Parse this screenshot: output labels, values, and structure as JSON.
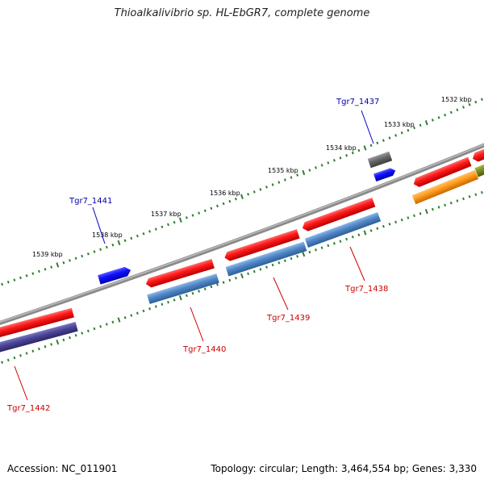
{
  "title": "Thioalkalivibrio sp. HL-EbGR7, complete genome",
  "footer": {
    "accession": "Accession: NC_011901",
    "summary": "Topology: circular; Length: 3,464,554 bp; Genes: 3,330"
  },
  "colors": {
    "backbone": "#8c8c8c",
    "tick": "#2e7d2e",
    "cds": "#ff1a1a",
    "cds_rna_bar": "#4f86c6",
    "blue_gene": "#1010ff",
    "gray_gene": "#666666",
    "orange_gene": "#ff9a1a",
    "olive_gene": "#7a8c1f",
    "purple_gene": "#4a4496",
    "label_red": "#cc0000",
    "label_blue": "#0000aa"
  },
  "tick_labels": [
    "1532 kbp",
    "1533 kbp",
    "1534 kbp",
    "1535 kbp",
    "1536 kbp",
    "1537 kbp",
    "1538 kbp",
    "1539 kbp"
  ],
  "gene_labels": {
    "g1437": "Tgr7_1437",
    "g1441": "Tgr7_1441",
    "g1438": "Tgr7_1438",
    "g1439": "Tgr7_1439",
    "g1440": "Tgr7_1440",
    "g1442": "Tgr7_1442"
  }
}
